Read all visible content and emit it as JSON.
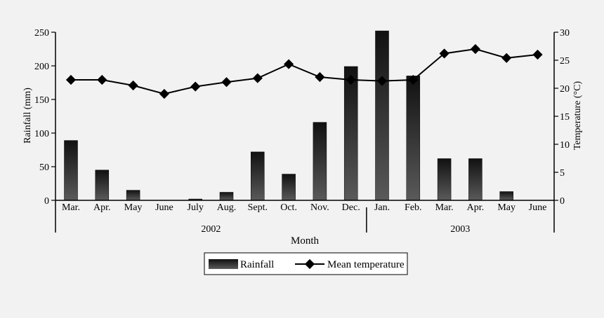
{
  "chart_data": {
    "type": "bar+line",
    "categories": [
      "Mar.",
      "Apr.",
      "May",
      "June",
      "July",
      "Aug.",
      "Sept.",
      "Oct.",
      "Nov.",
      "Dec.",
      "Jan.",
      "Feb.",
      "Mar.",
      "Apr.",
      "May",
      "June"
    ],
    "year_groups": [
      {
        "label": "2002",
        "start": 0,
        "end": 9
      },
      {
        "label": "2003",
        "start": 10,
        "end": 15
      }
    ],
    "series": [
      {
        "name": "Rainfall",
        "type": "bar",
        "axis": "left",
        "values": [
          89,
          45,
          15,
          0,
          2,
          12,
          72,
          39,
          116,
          199,
          252,
          185,
          62,
          62,
          13,
          0
        ]
      },
      {
        "name": "Mean temperature",
        "type": "line",
        "axis": "right",
        "values": [
          21.5,
          21.5,
          20.5,
          19.0,
          20.3,
          21.1,
          21.8,
          24.3,
          22.0,
          21.5,
          21.3,
          21.5,
          26.2,
          27.0,
          25.4,
          26.0
        ]
      }
    ],
    "xlabel": "Month",
    "ylabel_left": "Rainfall (mm)",
    "ylabel_right": "Temperature (°C)",
    "ylim_left": [
      0,
      250
    ],
    "ylim_right": [
      0,
      30
    ],
    "yticks_left": [
      "0",
      "50",
      "100",
      "150",
      "200",
      "250"
    ],
    "yticks_right": [
      "0",
      "5",
      "10",
      "15",
      "20",
      "25",
      "30"
    ],
    "grid": false,
    "legend_placement": "bottom-center",
    "colors": {
      "bar_dark": "#111111",
      "bar_light": "#5a5a5a",
      "line": "#000000",
      "background": "#f2f2f2"
    }
  }
}
